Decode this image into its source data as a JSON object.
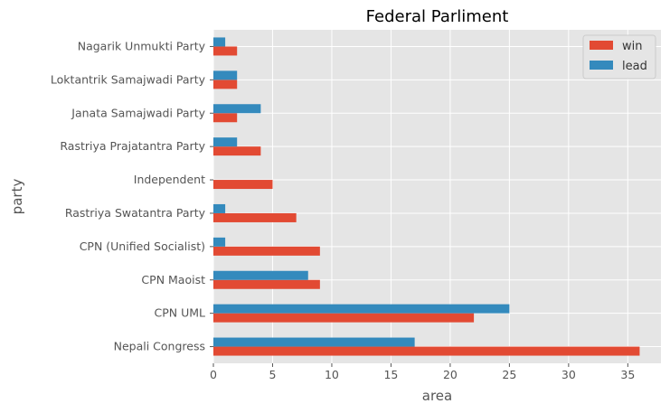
{
  "chart_data": {
    "type": "bar",
    "orientation": "horizontal",
    "title": "Federal Parliment",
    "xlabel": "area",
    "ylabel": "party",
    "categories": [
      "Nepali Congress",
      "CPN UML",
      "CPN Maoist",
      "CPN (Unified Socialist)",
      "Rastriya Swatantra Party",
      "Independent",
      "Rastriya Prajatantra Party",
      "Janata Samajwadi Party",
      "Loktantrik Samajwadi Party",
      "Nagarik Unmukti Party"
    ],
    "series": [
      {
        "name": "win",
        "color": "#e24a33",
        "values": [
          36,
          22,
          9,
          9,
          7,
          5,
          4,
          2,
          2,
          2
        ]
      },
      {
        "name": "lead",
        "color": "#348abd",
        "values": [
          17,
          25,
          8,
          1,
          1,
          0,
          2,
          4,
          2,
          1
        ]
      }
    ],
    "xlim": [
      0,
      37.8
    ],
    "xticks": [
      0,
      5,
      10,
      15,
      20,
      25,
      30,
      35
    ],
    "grid": true,
    "legend_position": "top-right",
    "style": {
      "plot_background": "#e5e5e5",
      "grid_color": "#ffffff"
    }
  }
}
